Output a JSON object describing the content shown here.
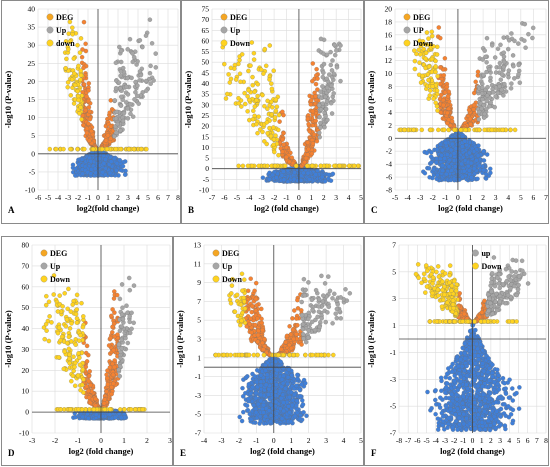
{
  "colors": {
    "deg": "#f5a623",
    "up": "#a6a6a6",
    "down": "#ffd320",
    "orange": "#f58231",
    "blue": "#3f7fd9",
    "grid": "#dcdcdc",
    "frame": "#8a8a8a"
  },
  "chart_data": [
    {
      "panel": "A",
      "type": "scatter",
      "xlabel": "log2(fold change)",
      "ylabel": "-log10 (P-value)",
      "xlim": [
        -6,
        8
      ],
      "ylim": [
        -10,
        40
      ],
      "xticks": [
        -6,
        -5,
        -4,
        -3,
        -2,
        -1,
        0,
        1,
        2,
        3,
        4,
        5,
        6,
        7,
        8
      ],
      "yticks": [
        -10,
        -5,
        0,
        5,
        10,
        15,
        20,
        25,
        30,
        35,
        40
      ],
      "legend": [
        {
          "label": "DEG",
          "color": "deg"
        },
        {
          "label": "Up",
          "color": "up"
        },
        {
          "label": "down",
          "color": "down"
        }
      ],
      "thresholds": {
        "x": 1,
        "y": 1.3
      },
      "spread": {
        "xneg": 3.5,
        "xpos": 6.5,
        "ymax": 38,
        "ymin": -6
      }
    },
    {
      "panel": "B",
      "type": "scatter",
      "xlabel": "log2 (fold change)",
      "ylabel": "-log10 (P-value)",
      "xlim": [
        -7,
        5
      ],
      "ylim": [
        -10,
        75
      ],
      "xticks": [
        -7,
        -6,
        -5,
        -4,
        -3,
        -2,
        -1,
        0,
        1,
        2,
        3,
        4,
        5
      ],
      "yticks": [
        -10,
        -5,
        0,
        5,
        10,
        15,
        20,
        25,
        30,
        35,
        40,
        45,
        50,
        55,
        60,
        65,
        70,
        75
      ],
      "legend": [
        {
          "label": "DEG",
          "color": "deg"
        },
        {
          "label": "Up",
          "color": "up"
        },
        {
          "label": "Down",
          "color": "down"
        }
      ],
      "thresholds": {
        "x": 1,
        "y": 1.3
      },
      "spread": {
        "xneg": 6.5,
        "xpos": 3.5,
        "ymax": 68,
        "ymin": -6
      }
    },
    {
      "panel": "C",
      "type": "scatter",
      "xlabel": "log2 (fold change)",
      "ylabel": "-log10 (P-value)",
      "xlim": [
        -5,
        7
      ],
      "ylim": [
        -8,
        20
      ],
      "xticks": [
        -5,
        -4,
        -3,
        -2,
        -1,
        0,
        1,
        2,
        3,
        4,
        5,
        6,
        7
      ],
      "yticks": [
        -8,
        -6,
        -4,
        -2,
        0,
        2,
        4,
        6,
        8,
        10,
        12,
        14,
        16,
        18,
        20
      ],
      "legend": [
        {
          "label": "DEG",
          "color": "deg"
        },
        {
          "label": "UP",
          "color": "up"
        },
        {
          "label": "Down",
          "color": "down"
        }
      ],
      "thresholds": {
        "x": 1,
        "y": 1.3
      },
      "spread": {
        "xneg": 3.5,
        "xpos": 6.2,
        "ymax": 18.5,
        "ymin": -6.5
      }
    },
    {
      "panel": "D",
      "type": "scatter",
      "xlabel": "log2 (fold change)",
      "ylabel": "-log10 (P-value)",
      "xlim": [
        -3,
        3
      ],
      "ylim": [
        -10,
        80
      ],
      "xticks": [
        -3,
        -2,
        -1,
        0,
        1,
        2,
        3
      ],
      "yticks": [
        -10,
        0,
        10,
        20,
        30,
        40,
        50,
        60,
        70,
        80
      ],
      "legend": [
        {
          "label": "DEG",
          "color": "deg"
        },
        {
          "label": "Up",
          "color": "up"
        },
        {
          "label": "Down",
          "color": "down"
        }
      ],
      "thresholds": {
        "x": 0.3,
        "y": 1.3
      },
      "spread": {
        "xneg": 2.6,
        "xpos": 1.5,
        "ymax": 68,
        "ymin": -3
      }
    },
    {
      "panel": "E",
      "type": "scatter",
      "xlabel": "log2 (fold change)",
      "ylabel": "-log10 (P-value)",
      "xlim": [
        -4,
        5
      ],
      "ylim": [
        -7,
        13
      ],
      "xticks": [
        -4,
        -3,
        -2,
        -1,
        0,
        1,
        2,
        3,
        4,
        5
      ],
      "yticks": [
        -7,
        -5,
        -3,
        -1,
        1,
        3,
        5,
        7,
        9,
        11,
        13
      ],
      "legend": [
        {
          "label": "DEG",
          "color": "deg"
        },
        {
          "label": "Up",
          "color": "up"
        },
        {
          "label": "Down",
          "color": "down"
        }
      ],
      "thresholds": {
        "x": 1,
        "y": 1.3
      },
      "spread": {
        "xneg": 2.6,
        "xpos": 4.6,
        "ymax": 10.5,
        "ymin": -6
      }
    },
    {
      "panel": "F",
      "type": "scatter",
      "xlabel": "log2 (fold change)",
      "ylabel": "-log10 (P-value)",
      "xlim": [
        -8,
        8
      ],
      "ylim": [
        -7,
        7
      ],
      "xticks": [
        -8,
        -7,
        -6,
        -5,
        -4,
        -3,
        -2,
        -1,
        0,
        1,
        2,
        3,
        4,
        5,
        6,
        7,
        8
      ],
      "yticks": [
        -7,
        -5,
        -3,
        -1,
        1,
        3,
        5,
        7
      ],
      "legend": [
        {
          "label": "up",
          "color": "up"
        },
        {
          "label": "Down",
          "color": "down"
        }
      ],
      "thresholds": {
        "x": 1,
        "y": 1.3
      },
      "spread": {
        "xneg": 6.5,
        "xpos": 6.5,
        "ymax": 6.2,
        "ymin": -6.8
      }
    }
  ]
}
